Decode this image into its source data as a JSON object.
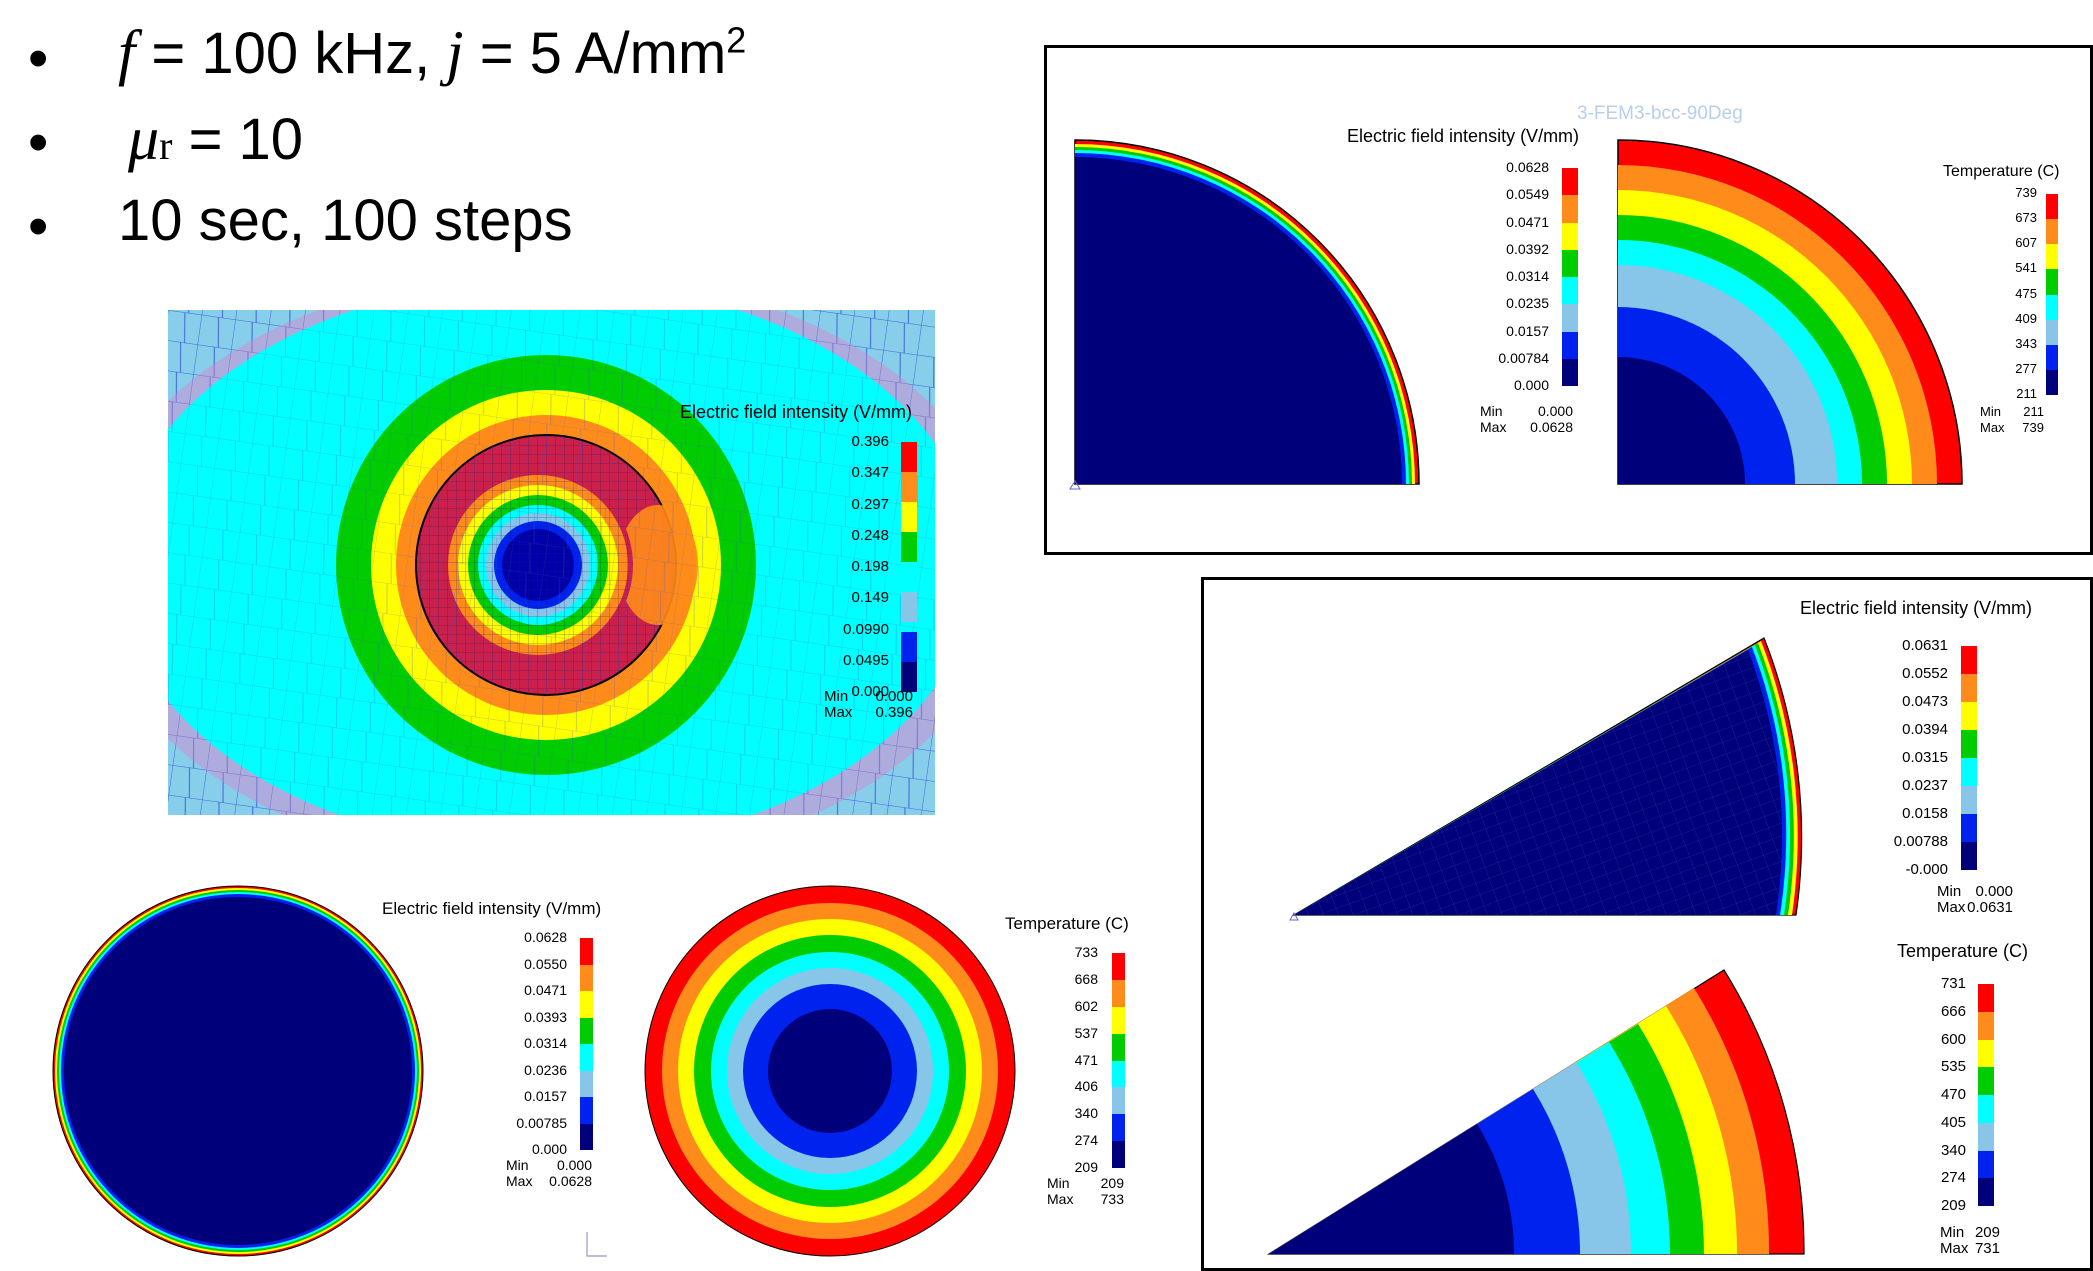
{
  "bullets": {
    "b1": {
      "f_sym": "f",
      "mid": " = 100 kHz, ",
      "j_sym": "j",
      "end": " = 5 A/mm",
      "sup": "2"
    },
    "b2": {
      "mu_sym": "μ",
      "mu_sub": "r",
      "end": " = 10"
    },
    "b3": "10 sec, 100 steps"
  },
  "overlay_text": "3-FEM3-bcc-90Deg",
  "efield_title": "Electric field intensity (V/mm)",
  "temp_title": "Temperature (C)",
  "min_label": "Min",
  "max_label": "Max",
  "colors": {
    "scale": [
      "#ff0000",
      "#ff8c1a",
      "#ffff00",
      "#00cc00",
      "#00ffff",
      "#87c6e8",
      "#0022ee",
      "#00007a"
    ],
    "fe_background": "#87ceeb",
    "fe_mesh": "#3a5ad6",
    "pink_band": "#cc8fd0"
  },
  "panels": {
    "fe_model": {
      "levels": [
        "0.396",
        "0.347",
        "0.297",
        "0.248",
        "0.198",
        "0.149",
        "0.0990",
        "0.0495",
        "0.000"
      ],
      "min": "0.000",
      "max": "0.396"
    },
    "quarter_e": {
      "levels": [
        "0.0628",
        "0.0549",
        "0.0471",
        "0.0392",
        "0.0314",
        "0.0235",
        "0.0157",
        "0.00784",
        "0.000"
      ],
      "min": "0.000",
      "max": "0.0628"
    },
    "quarter_t": {
      "levels": [
        "739",
        "673",
        "607",
        "541",
        "475",
        "409",
        "343",
        "277",
        "211"
      ],
      "min": "211",
      "max": "739"
    },
    "wedge_e": {
      "levels": [
        "0.0631",
        "0.0552",
        "0.0473",
        "0.0394",
        "0.0315",
        "0.0237",
        "0.0158",
        "0.00788",
        "-0.000"
      ],
      "min": "0.000",
      "max": "0.0631"
    },
    "wedge_t": {
      "levels": [
        "731",
        "666",
        "600",
        "535",
        "470",
        "405",
        "340",
        "274",
        "209"
      ],
      "min": "209",
      "max": "731"
    },
    "disk_e": {
      "levels": [
        "0.0628",
        "0.0550",
        "0.0471",
        "0.0393",
        "0.0314",
        "0.0236",
        "0.0157",
        "0.00785",
        "0.000"
      ],
      "min": "0.000",
      "max": "0.0628"
    },
    "disk_t": {
      "levels": [
        "733",
        "668",
        "602",
        "537",
        "471",
        "406",
        "340",
        "274",
        "209"
      ],
      "min": "209",
      "max": "733"
    }
  }
}
